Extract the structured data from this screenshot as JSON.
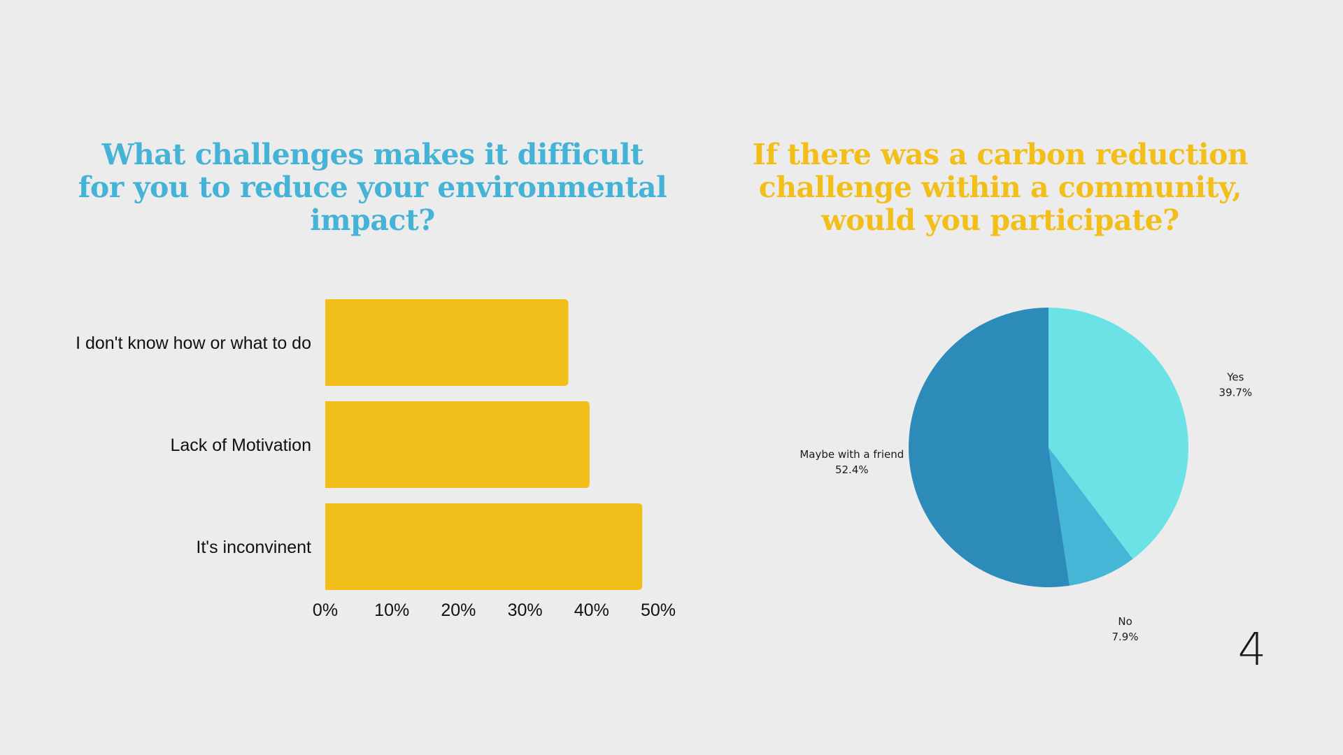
{
  "slide": {
    "page_number": "4"
  },
  "chart_data": [
    {
      "type": "bar",
      "orientation": "horizontal",
      "title": "What challenges makes it difficult for you to reduce your environmental impact?",
      "categories": [
        "I don't know how or what to do",
        "Lack of Motivation",
        "It's inconvinent"
      ],
      "values": [
        36.5,
        39.7,
        47.6
      ],
      "x_ticks": [
        "0%",
        "10%",
        "20%",
        "30%",
        "40%",
        "50%"
      ],
      "xlim": [
        0,
        50
      ],
      "unit": "%",
      "grid": false,
      "legend": "none",
      "colors": {
        "title": "#45b3d6",
        "bar": "#f2bf1a",
        "text": "#111111"
      }
    },
    {
      "type": "pie",
      "title": "If there was a carbon reduction challenge within a community, would you participate?",
      "slices": [
        {
          "label": "Yes",
          "value": 39.7,
          "value_label": "39.7%",
          "color": "#6be3e6"
        },
        {
          "label": "No",
          "value": 7.9,
          "value_label": "7.9%",
          "color": "#45b6d6"
        },
        {
          "label": "Maybe with a friend",
          "value": 52.4,
          "value_label": "52.4%",
          "color": "#2d8bba"
        }
      ],
      "start_angle": "12 o'clock, clockwise",
      "legend": "none",
      "colors": {
        "title": "#f2bf1a"
      }
    }
  ]
}
